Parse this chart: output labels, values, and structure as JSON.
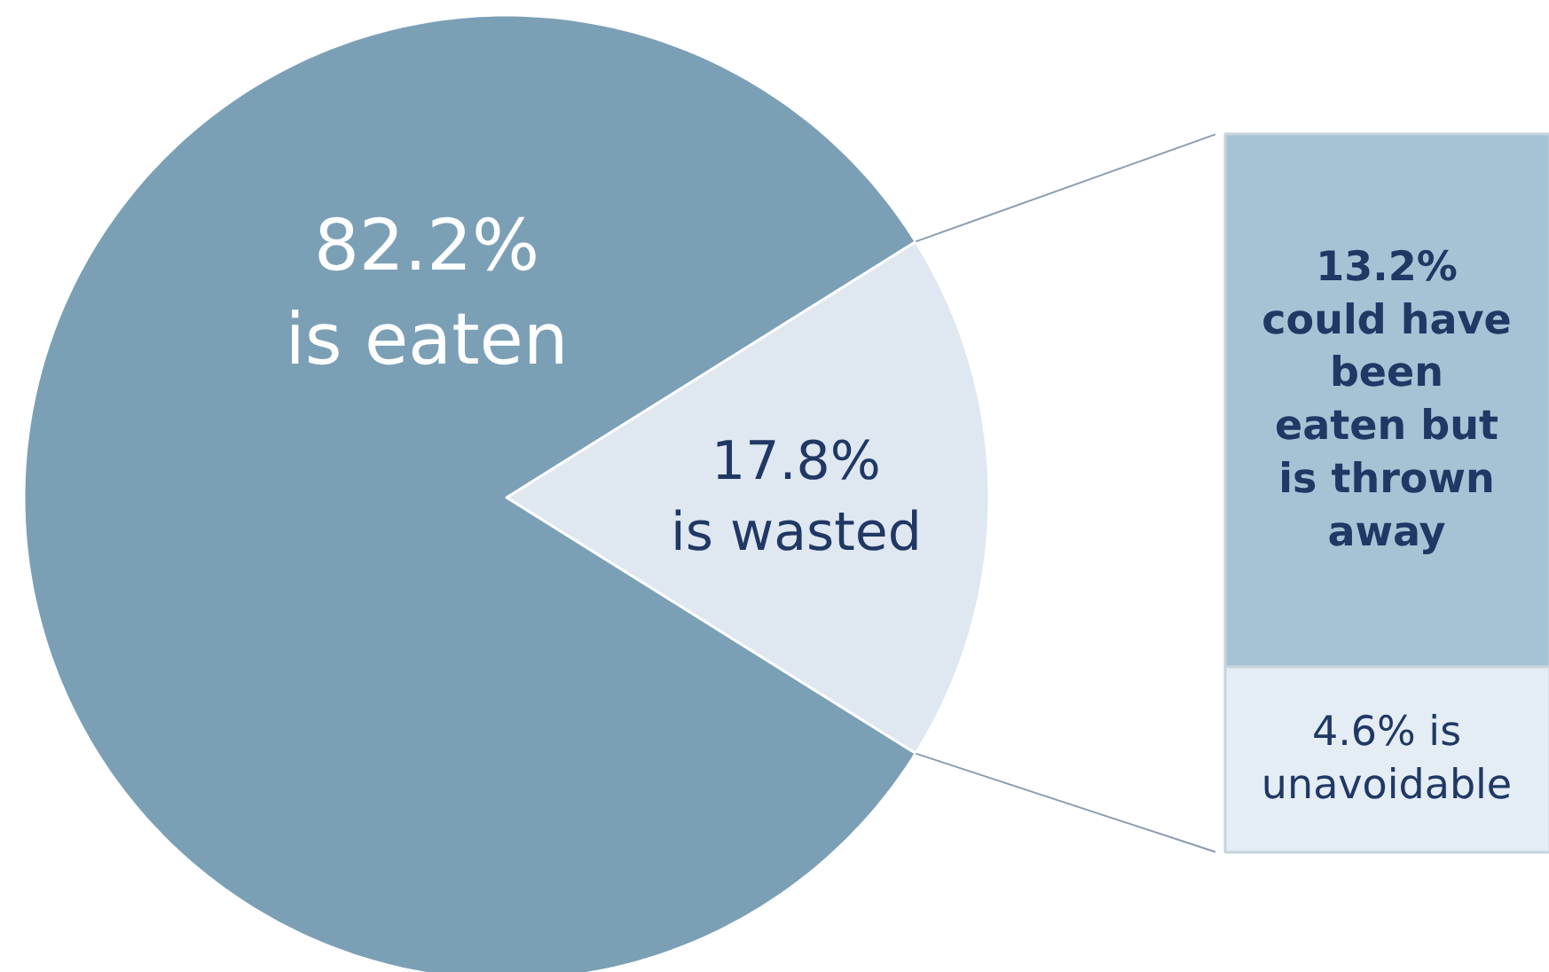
{
  "chart_data": [
    {
      "type": "pie",
      "categories": [
        "is eaten",
        "is wasted"
      ],
      "values": [
        82.2,
        17.8
      ],
      "value_labels": [
        "82.2%",
        "17.8%"
      ],
      "colors": [
        "#7ba0b6",
        "#dfe7f0"
      ]
    },
    {
      "type": "bar",
      "stacked": true,
      "categories": [
        null
      ],
      "series": [
        {
          "color": "#e4ecf4",
          "values": [
            4.6
          ],
          "value_labels": [
            "4.6% is\nunavoidable"
          ]
        },
        {
          "color": "#a6c3d6",
          "values": [
            13.2
          ],
          "value_labels": [
            "13.2%\ncould have\nbeen\neaten but\nis thrown\naway"
          ]
        }
      ]
    }
  ]
}
